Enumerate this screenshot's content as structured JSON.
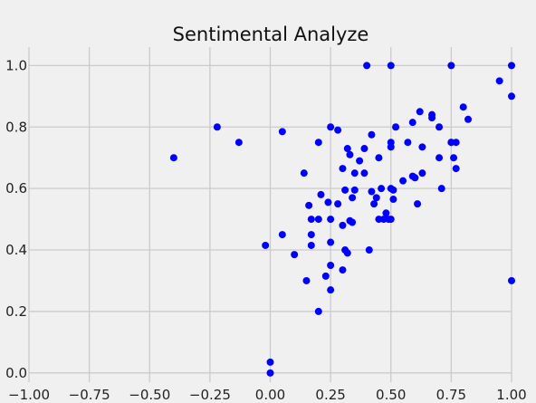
{
  "chart_data": {
    "type": "scatter",
    "title": "Sentimental Analyze",
    "xlabel": "",
    "ylabel": "",
    "xlim": [
      -1.0,
      1.0
    ],
    "ylim": [
      -0.03,
      1.06
    ],
    "grid": true,
    "marker_color": "#0000ff",
    "background_color": "#f0f0f0",
    "grid_color": "#cbcbcb",
    "x_ticks": [
      "−1.00",
      "−0.75",
      "−0.50",
      "−0.25",
      "0.00",
      "0.25",
      "0.50",
      "0.75",
      "1.00"
    ],
    "y_ticks": [
      "0.0",
      "0.2",
      "0.4",
      "0.6",
      "0.8",
      "1.0"
    ],
    "x": [
      -0.4,
      -0.22,
      -0.13,
      -0.02,
      0.0,
      0.0,
      0.05,
      0.05,
      0.1,
      0.14,
      0.15,
      0.16,
      0.17,
      0.17,
      0.17,
      0.2,
      0.2,
      0.21,
      0.2,
      0.23,
      0.24,
      0.25,
      0.25,
      0.25,
      0.25,
      0.25,
      0.28,
      0.28,
      0.3,
      0.3,
      0.3,
      0.31,
      0.32,
      0.31,
      0.32,
      0.33,
      0.33,
      0.34,
      0.34,
      0.35,
      0.35,
      0.37,
      0.39,
      0.39,
      0.4,
      0.41,
      0.42,
      0.42,
      0.43,
      0.44,
      0.45,
      0.45,
      0.46,
      0.47,
      0.48,
      0.49,
      0.5,
      0.5,
      0.5,
      0.51,
      0.51,
      0.5,
      0.52,
      0.5,
      0.55,
      0.57,
      0.59,
      0.59,
      0.6,
      0.61,
      0.62,
      0.63,
      0.63,
      0.67,
      0.67,
      0.7,
      0.7,
      0.71,
      0.75,
      0.75,
      0.76,
      0.77,
      0.77,
      0.75,
      0.8,
      0.82,
      0.95,
      1.0,
      1.0,
      1.0
    ],
    "y": [
      0.7,
      0.8,
      0.75,
      0.415,
      0.0,
      0.035,
      0.45,
      0.785,
      0.385,
      0.65,
      0.3,
      0.545,
      0.5,
      0.45,
      0.415,
      0.2,
      0.75,
      0.58,
      0.5,
      0.315,
      0.555,
      0.27,
      0.35,
      0.425,
      0.5,
      0.8,
      0.79,
      0.55,
      0.335,
      0.48,
      0.665,
      0.595,
      0.39,
      0.4,
      0.73,
      0.495,
      0.71,
      0.57,
      0.49,
      0.595,
      0.65,
      0.69,
      0.73,
      0.65,
      1.0,
      0.4,
      0.775,
      0.59,
      0.55,
      0.57,
      0.5,
      0.7,
      0.6,
      0.5,
      0.52,
      0.5,
      0.6,
      0.735,
      0.75,
      0.595,
      0.565,
      1.0,
      0.8,
      0.5,
      0.625,
      0.75,
      0.815,
      0.64,
      0.635,
      0.55,
      0.85,
      0.735,
      0.65,
      0.84,
      0.83,
      0.8,
      0.7,
      0.6,
      1.0,
      0.75,
      0.7,
      0.75,
      0.665,
      0.75,
      0.865,
      0.825,
      0.95,
      1.0,
      0.9,
      0.3
    ]
  }
}
